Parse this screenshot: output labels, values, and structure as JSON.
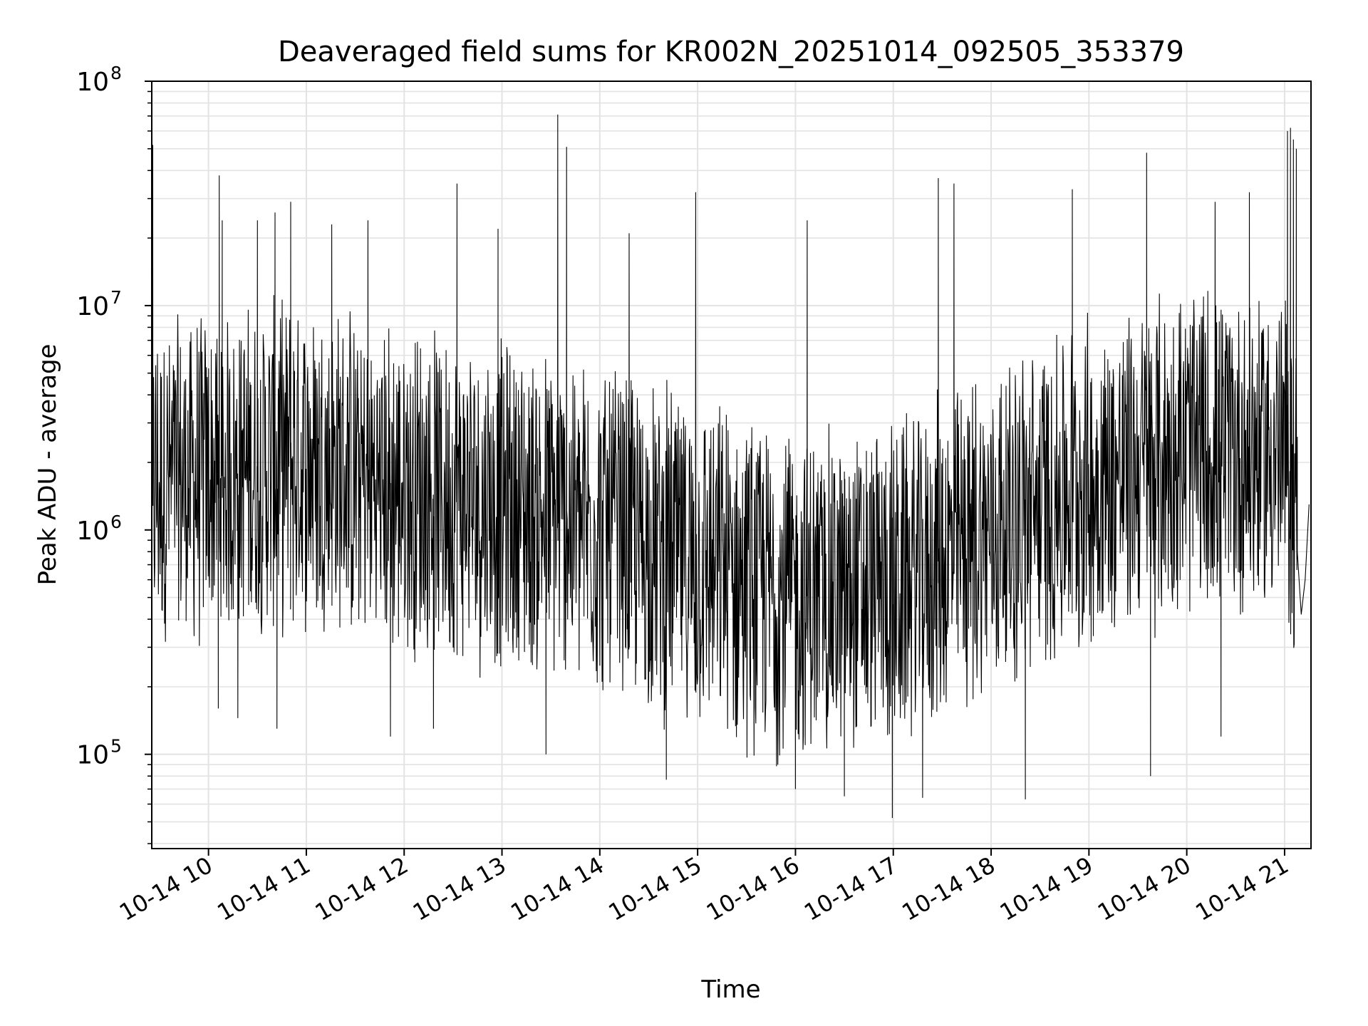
{
  "chart_data": {
    "type": "line",
    "title": "Deaveraged field sums for KR002N_20251014_092505_353379",
    "xlabel": "Time",
    "ylabel": "Peak ADU - average",
    "yscale": "log",
    "ylim": [
      38000,
      100000000
    ],
    "xlim_hours": [
      9.42,
      21.27
    ],
    "grid": true,
    "line_color": "#000000",
    "grid_color": "#e3e3e3",
    "x_ticks": [
      {
        "hour": 10,
        "label": "10-14 10"
      },
      {
        "hour": 11,
        "label": "10-14 11"
      },
      {
        "hour": 12,
        "label": "10-14 12"
      },
      {
        "hour": 13,
        "label": "10-14 13"
      },
      {
        "hour": 14,
        "label": "10-14 14"
      },
      {
        "hour": 15,
        "label": "10-14 15"
      },
      {
        "hour": 16,
        "label": "10-14 16"
      },
      {
        "hour": 17,
        "label": "10-14 17"
      },
      {
        "hour": 18,
        "label": "10-14 18"
      },
      {
        "hour": 19,
        "label": "10-14 19"
      },
      {
        "hour": 20,
        "label": "10-14 20"
      },
      {
        "hour": 21,
        "label": "10-14 21"
      }
    ],
    "y_ticks": [
      {
        "value": 100000,
        "base": "10",
        "exp": "5"
      },
      {
        "value": 1000000,
        "base": "10",
        "exp": "6"
      },
      {
        "value": 10000000,
        "base": "10",
        "exp": "7"
      },
      {
        "value": 100000000,
        "base": "10",
        "exp": "8"
      }
    ],
    "series": [
      {
        "name": "field sums",
        "baseline_envelope": [
          {
            "hour": 9.42,
            "median": 1600000
          },
          {
            "hour": 10.0,
            "median": 1700000
          },
          {
            "hour": 11.0,
            "median": 2000000
          },
          {
            "hour": 12.0,
            "median": 1500000
          },
          {
            "hour": 13.0,
            "median": 1300000
          },
          {
            "hour": 14.0,
            "median": 1000000
          },
          {
            "hour": 15.0,
            "median": 700000
          },
          {
            "hour": 16.0,
            "median": 500000
          },
          {
            "hour": 17.0,
            "median": 550000
          },
          {
            "hour": 18.0,
            "median": 1000000
          },
          {
            "hour": 19.0,
            "median": 1600000
          },
          {
            "hour": 20.0,
            "median": 2200000
          },
          {
            "hour": 21.0,
            "median": 2200000
          },
          {
            "hour": 21.27,
            "median": 800000
          }
        ],
        "peaks": [
          {
            "hour": 9.43,
            "value": 52000000
          },
          {
            "hour": 10.11,
            "value": 38000000
          },
          {
            "hour": 10.14,
            "value": 24000000
          },
          {
            "hour": 10.5,
            "value": 24000000
          },
          {
            "hour": 10.68,
            "value": 26000000
          },
          {
            "hour": 10.84,
            "value": 29000000
          },
          {
            "hour": 11.26,
            "value": 23000000
          },
          {
            "hour": 11.63,
            "value": 24000000
          },
          {
            "hour": 12.54,
            "value": 35000000
          },
          {
            "hour": 12.96,
            "value": 22000000
          },
          {
            "hour": 13.57,
            "value": 71000000
          },
          {
            "hour": 13.66,
            "value": 51000000
          },
          {
            "hour": 14.3,
            "value": 21000000
          },
          {
            "hour": 14.98,
            "value": 32000000
          },
          {
            "hour": 16.12,
            "value": 24000000
          },
          {
            "hour": 17.46,
            "value": 37000000
          },
          {
            "hour": 17.62,
            "value": 35000000
          },
          {
            "hour": 18.83,
            "value": 33000000
          },
          {
            "hour": 19.59,
            "value": 48000000
          },
          {
            "hour": 20.29,
            "value": 29000000
          },
          {
            "hour": 20.64,
            "value": 32000000
          },
          {
            "hour": 21.03,
            "value": 60000000
          },
          {
            "hour": 21.06,
            "value": 62000000
          },
          {
            "hour": 21.09,
            "value": 55000000
          },
          {
            "hour": 21.12,
            "value": 50000000
          }
        ],
        "troughs": [
          {
            "hour": 10.1,
            "value": 160000
          },
          {
            "hour": 10.3,
            "value": 145000
          },
          {
            "hour": 10.7,
            "value": 130000
          },
          {
            "hour": 11.86,
            "value": 120000
          },
          {
            "hour": 12.3,
            "value": 130000
          },
          {
            "hour": 13.45,
            "value": 100000
          },
          {
            "hour": 14.68,
            "value": 77000
          },
          {
            "hour": 16.0,
            "value": 70000
          },
          {
            "hour": 16.5,
            "value": 65000
          },
          {
            "hour": 16.99,
            "value": 52000
          },
          {
            "hour": 17.3,
            "value": 64000
          },
          {
            "hour": 18.35,
            "value": 63000
          },
          {
            "hour": 19.63,
            "value": 80000
          },
          {
            "hour": 20.35,
            "value": 120000
          }
        ],
        "tail_values": [
          {
            "hour": 21.13,
            "value": 800000
          },
          {
            "hour": 21.17,
            "value": 420000
          },
          {
            "hour": 21.21,
            "value": 600000
          },
          {
            "hour": 21.25,
            "value": 1300000
          }
        ]
      }
    ]
  }
}
